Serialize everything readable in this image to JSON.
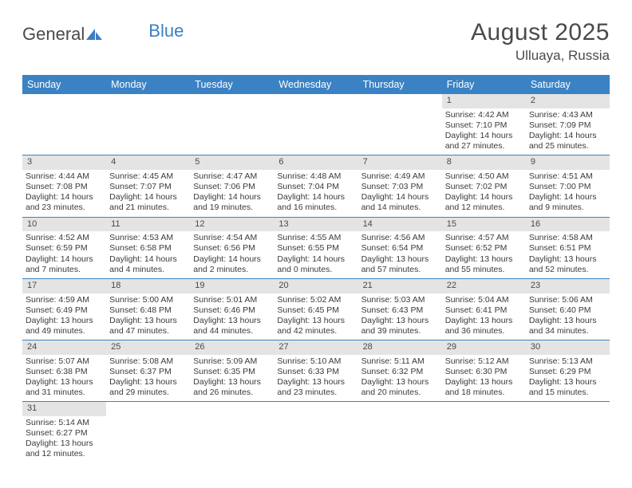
{
  "logo": {
    "part1": "General",
    "part2": "Blue"
  },
  "title": "August 2025",
  "location": "Ulluaya, Russia",
  "colors": {
    "header_bg": "#3b82c4",
    "header_text": "#ffffff",
    "daynum_bg": "#e4e4e4",
    "text": "#3a3a3a",
    "title_text": "#4a4a4a",
    "row_border": "#3b82c4"
  },
  "day_names": [
    "Sunday",
    "Monday",
    "Tuesday",
    "Wednesday",
    "Thursday",
    "Friday",
    "Saturday"
  ],
  "weeks": [
    [
      null,
      null,
      null,
      null,
      null,
      {
        "n": "1",
        "sr": "Sunrise: 4:42 AM",
        "ss": "Sunset: 7:10 PM",
        "dl": "Daylight: 14 hours and 27 minutes."
      },
      {
        "n": "2",
        "sr": "Sunrise: 4:43 AM",
        "ss": "Sunset: 7:09 PM",
        "dl": "Daylight: 14 hours and 25 minutes."
      }
    ],
    [
      {
        "n": "3",
        "sr": "Sunrise: 4:44 AM",
        "ss": "Sunset: 7:08 PM",
        "dl": "Daylight: 14 hours and 23 minutes."
      },
      {
        "n": "4",
        "sr": "Sunrise: 4:45 AM",
        "ss": "Sunset: 7:07 PM",
        "dl": "Daylight: 14 hours and 21 minutes."
      },
      {
        "n": "5",
        "sr": "Sunrise: 4:47 AM",
        "ss": "Sunset: 7:06 PM",
        "dl": "Daylight: 14 hours and 19 minutes."
      },
      {
        "n": "6",
        "sr": "Sunrise: 4:48 AM",
        "ss": "Sunset: 7:04 PM",
        "dl": "Daylight: 14 hours and 16 minutes."
      },
      {
        "n": "7",
        "sr": "Sunrise: 4:49 AM",
        "ss": "Sunset: 7:03 PM",
        "dl": "Daylight: 14 hours and 14 minutes."
      },
      {
        "n": "8",
        "sr": "Sunrise: 4:50 AM",
        "ss": "Sunset: 7:02 PM",
        "dl": "Daylight: 14 hours and 12 minutes."
      },
      {
        "n": "9",
        "sr": "Sunrise: 4:51 AM",
        "ss": "Sunset: 7:00 PM",
        "dl": "Daylight: 14 hours and 9 minutes."
      }
    ],
    [
      {
        "n": "10",
        "sr": "Sunrise: 4:52 AM",
        "ss": "Sunset: 6:59 PM",
        "dl": "Daylight: 14 hours and 7 minutes."
      },
      {
        "n": "11",
        "sr": "Sunrise: 4:53 AM",
        "ss": "Sunset: 6:58 PM",
        "dl": "Daylight: 14 hours and 4 minutes."
      },
      {
        "n": "12",
        "sr": "Sunrise: 4:54 AM",
        "ss": "Sunset: 6:56 PM",
        "dl": "Daylight: 14 hours and 2 minutes."
      },
      {
        "n": "13",
        "sr": "Sunrise: 4:55 AM",
        "ss": "Sunset: 6:55 PM",
        "dl": "Daylight: 14 hours and 0 minutes."
      },
      {
        "n": "14",
        "sr": "Sunrise: 4:56 AM",
        "ss": "Sunset: 6:54 PM",
        "dl": "Daylight: 13 hours and 57 minutes."
      },
      {
        "n": "15",
        "sr": "Sunrise: 4:57 AM",
        "ss": "Sunset: 6:52 PM",
        "dl": "Daylight: 13 hours and 55 minutes."
      },
      {
        "n": "16",
        "sr": "Sunrise: 4:58 AM",
        "ss": "Sunset: 6:51 PM",
        "dl": "Daylight: 13 hours and 52 minutes."
      }
    ],
    [
      {
        "n": "17",
        "sr": "Sunrise: 4:59 AM",
        "ss": "Sunset: 6:49 PM",
        "dl": "Daylight: 13 hours and 49 minutes."
      },
      {
        "n": "18",
        "sr": "Sunrise: 5:00 AM",
        "ss": "Sunset: 6:48 PM",
        "dl": "Daylight: 13 hours and 47 minutes."
      },
      {
        "n": "19",
        "sr": "Sunrise: 5:01 AM",
        "ss": "Sunset: 6:46 PM",
        "dl": "Daylight: 13 hours and 44 minutes."
      },
      {
        "n": "20",
        "sr": "Sunrise: 5:02 AM",
        "ss": "Sunset: 6:45 PM",
        "dl": "Daylight: 13 hours and 42 minutes."
      },
      {
        "n": "21",
        "sr": "Sunrise: 5:03 AM",
        "ss": "Sunset: 6:43 PM",
        "dl": "Daylight: 13 hours and 39 minutes."
      },
      {
        "n": "22",
        "sr": "Sunrise: 5:04 AM",
        "ss": "Sunset: 6:41 PM",
        "dl": "Daylight: 13 hours and 36 minutes."
      },
      {
        "n": "23",
        "sr": "Sunrise: 5:06 AM",
        "ss": "Sunset: 6:40 PM",
        "dl": "Daylight: 13 hours and 34 minutes."
      }
    ],
    [
      {
        "n": "24",
        "sr": "Sunrise: 5:07 AM",
        "ss": "Sunset: 6:38 PM",
        "dl": "Daylight: 13 hours and 31 minutes."
      },
      {
        "n": "25",
        "sr": "Sunrise: 5:08 AM",
        "ss": "Sunset: 6:37 PM",
        "dl": "Daylight: 13 hours and 29 minutes."
      },
      {
        "n": "26",
        "sr": "Sunrise: 5:09 AM",
        "ss": "Sunset: 6:35 PM",
        "dl": "Daylight: 13 hours and 26 minutes."
      },
      {
        "n": "27",
        "sr": "Sunrise: 5:10 AM",
        "ss": "Sunset: 6:33 PM",
        "dl": "Daylight: 13 hours and 23 minutes."
      },
      {
        "n": "28",
        "sr": "Sunrise: 5:11 AM",
        "ss": "Sunset: 6:32 PM",
        "dl": "Daylight: 13 hours and 20 minutes."
      },
      {
        "n": "29",
        "sr": "Sunrise: 5:12 AM",
        "ss": "Sunset: 6:30 PM",
        "dl": "Daylight: 13 hours and 18 minutes."
      },
      {
        "n": "30",
        "sr": "Sunrise: 5:13 AM",
        "ss": "Sunset: 6:29 PM",
        "dl": "Daylight: 13 hours and 15 minutes."
      }
    ],
    [
      {
        "n": "31",
        "sr": "Sunrise: 5:14 AM",
        "ss": "Sunset: 6:27 PM",
        "dl": "Daylight: 13 hours and 12 minutes."
      },
      null,
      null,
      null,
      null,
      null,
      null
    ]
  ]
}
